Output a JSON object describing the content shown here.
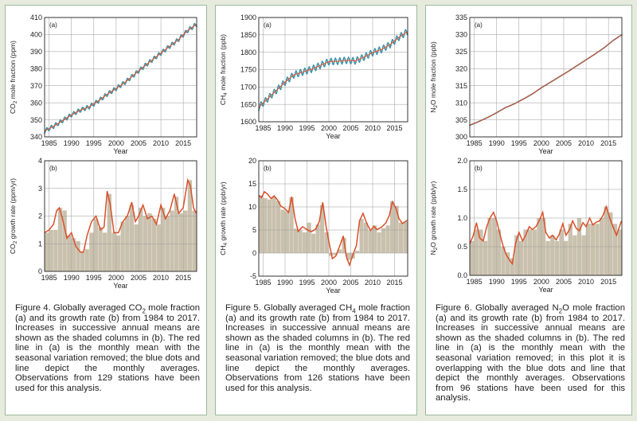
{
  "panels": [
    {
      "id": "co2",
      "caption_lines": [
        "Figure 4. Globally averaged CO",
        "2",
        " mole fraction (a) and its growth rate (b) from 1984 to 2017. Increases in successive annual means are shown as the shaded columns in (b). The red line in (a) is the monthly mean with the seasonal variation removed; the blue dots and line depict the monthly averages. Observations from 129 stations have been used for this analysis."
      ],
      "caption": "Figure 4. Globally averaged CO2 mole fraction (a) and its growth rate (b) from 1984 to 2017. Increases in successive annual means are shown as the shaded columns in (b). The red line in (a) is the monthly mean with the seasonal variation removed; the blue dots and line depict the monthly averages. Observations from 129 stations have been used for this analysis."
    },
    {
      "id": "ch4",
      "caption_lines": [
        "Figure 5. Globally averaged CH",
        "4",
        " mole fraction (a) and its growth rate (b) from 1984 to 2017. Increases in successive annual means are shown as the shaded columns in (b). The red line in (a) is the monthly mean with the seasonal variation removed; the blue dots and line depict the monthly averages. Observations from 126 stations have been used for this analysis."
      ],
      "caption": "Figure 5. Globally averaged CH4 mole fraction (a) and its growth rate (b) from 1984 to 2017. Increases in successive annual means are shown as the shaded columns in (b). The red line in (a) is the monthly mean with the seasonal variation removed; the blue dots and line depict the monthly averages. Observations from 126 stations have been used for this analysis."
    },
    {
      "id": "n2o",
      "caption_lines": [
        "Figure 6. Globally averaged N",
        "2",
        "O mole fraction (a) and its growth rate (b) from 1984 to 2017. Increases in successive annual means are shown as the shaded columns in (b). The red line in (a) is the monthly mean with the seasonal variation removed; in this plot it is overlapping with the blue dots and line that depict the monthly averages. Observations from 96 stations have been used for this analysis."
      ],
      "caption": "Figure 6. Globally averaged N2O mole fraction (a) and its growth rate (b) from 1984 to 2017. Increases in successive annual means are shown as the shaded columns in (b). The red line in (a) is the monthly mean with the seasonal variation removed; in this plot it is overlapping with the blue dots and line that depict the monthly averages. Observations from 96 stations have been used for this analysis."
    }
  ],
  "colors": {
    "red": "#d9502a",
    "blue": "#3a8fa8",
    "bar": "#c9c1ad",
    "grid": "#9a9a9a"
  },
  "chart_data": [
    {
      "type": "line",
      "panel": 0,
      "tag": "(a)",
      "title": "",
      "xlabel": "Year",
      "ylabel_main": "CO",
      "ylabel_sub": "2",
      "ylabel_rest": " mole fraction (ppm)",
      "xlim": [
        1984,
        2018
      ],
      "ylim": [
        340,
        410
      ],
      "xticks": [
        1985,
        1990,
        1995,
        2000,
        2005,
        2010,
        2015
      ],
      "yticks": [
        340,
        350,
        360,
        370,
        380,
        390,
        400,
        410
      ],
      "seasonal_amplitude": 1.2,
      "x": [
        1984,
        1986,
        1988,
        1990,
        1992,
        1994,
        1996,
        1998,
        2000,
        2002,
        2004,
        2006,
        2008,
        2010,
        2012,
        2014,
        2016,
        2017.9
      ],
      "y": [
        343.5,
        346.2,
        349.5,
        352.9,
        355.7,
        357.6,
        361.0,
        365.0,
        368.4,
        372.0,
        376.4,
        380.8,
        385.0,
        389.1,
        393.2,
        397.2,
        402.4,
        405.9
      ]
    },
    {
      "type": "bar",
      "panel": 0,
      "tag": "(b)",
      "title": "",
      "xlabel": "Year",
      "ylabel_main": "CO",
      "ylabel_sub": "2",
      "ylabel_rest": " growth rate (ppm/yr)",
      "xlim": [
        1984,
        2018
      ],
      "ylim": [
        0,
        4.0
      ],
      "xticks": [
        1985,
        1990,
        1995,
        2000,
        2005,
        2010,
        2015
      ],
      "yticks": [
        0.0,
        1.0,
        2.0,
        3.0,
        4.0
      ],
      "categories": [
        1984,
        1985,
        1986,
        1987,
        1988,
        1989,
        1990,
        1991,
        1992,
        1993,
        1994,
        1995,
        1996,
        1997,
        1998,
        1999,
        2000,
        2001,
        2002,
        2003,
        2004,
        2005,
        2006,
        2007,
        2008,
        2009,
        2010,
        2011,
        2012,
        2013,
        2014,
        2015,
        2016,
        2017
      ],
      "values": [
        1.4,
        1.5,
        1.5,
        2.3,
        2.2,
        1.3,
        1.2,
        1.1,
        0.7,
        0.8,
        1.4,
        1.9,
        1.6,
        1.4,
        2.8,
        1.4,
        1.3,
        1.8,
        2.0,
        2.4,
        1.7,
        2.3,
        2.0,
        2.1,
        1.9,
        1.7,
        2.3,
        2.0,
        2.2,
        2.7,
        2.1,
        2.2,
        3.3,
        2.2
      ],
      "line_x": [
        1984,
        1985,
        1986,
        1986.7,
        1987.3,
        1988,
        1989,
        1990,
        1991,
        1992,
        1992.7,
        1993.5,
        1994.5,
        1995.5,
        1996.5,
        1997.3,
        1998,
        1998.7,
        1999.5,
        2000.5,
        2001.5,
        2002.5,
        2003.5,
        2004.3,
        2005,
        2006,
        2007,
        2008,
        2009,
        2010,
        2011,
        2012,
        2013,
        2014,
        2015,
        2016,
        2016.6,
        2017.3,
        2017.9
      ],
      "line_y": [
        1.4,
        1.5,
        1.7,
        2.2,
        2.3,
        1.9,
        1.2,
        1.4,
        0.9,
        0.7,
        0.7,
        1.3,
        1.8,
        2.0,
        1.5,
        1.6,
        2.9,
        2.4,
        1.4,
        1.4,
        1.8,
        2.0,
        2.5,
        1.8,
        2.0,
        2.4,
        1.9,
        2.0,
        1.7,
        2.4,
        1.9,
        2.2,
        2.8,
        2.1,
        2.3,
        3.3,
        3.1,
        2.3,
        2.1
      ]
    },
    {
      "type": "line",
      "panel": 1,
      "tag": "(a)",
      "title": "",
      "xlabel": "Year",
      "ylabel_main": "CH",
      "ylabel_sub": "4",
      "ylabel_rest": " mole fraction (ppb)",
      "xlim": [
        1984,
        2018
      ],
      "ylim": [
        1600,
        1900
      ],
      "xticks": [
        1985,
        1990,
        1995,
        2000,
        2005,
        2010,
        2015
      ],
      "yticks": [
        1600,
        1650,
        1700,
        1750,
        1800,
        1850,
        1900
      ],
      "seasonal_amplitude": 9,
      "x": [
        1984,
        1986,
        1988,
        1990,
        1992,
        1994,
        1996,
        1998,
        2000,
        2002,
        2004,
        2006,
        2008,
        2010,
        2012,
        2014,
        2016,
        2017.9
      ],
      "y": [
        1642,
        1666,
        1690,
        1714,
        1735,
        1743,
        1751,
        1762,
        1773,
        1774,
        1777,
        1775,
        1786,
        1799,
        1808,
        1822,
        1843,
        1859
      ]
    },
    {
      "type": "bar",
      "panel": 1,
      "tag": "(b)",
      "title": "",
      "xlabel": "Year",
      "ylabel_main": "CH",
      "ylabel_sub": "4",
      "ylabel_rest": " growth rate (ppb/yr)",
      "xlim": [
        1984,
        2018
      ],
      "ylim": [
        -5,
        20
      ],
      "xticks": [
        1985,
        1990,
        1995,
        2000,
        2005,
        2010,
        2015
      ],
      "yticks": [
        -5,
        0,
        5,
        10,
        15,
        20
      ],
      "categories": [
        1984,
        1985,
        1986,
        1987,
        1988,
        1989,
        1990,
        1991,
        1992,
        1993,
        1994,
        1995,
        1996,
        1997,
        1998,
        1999,
        2000,
        2001,
        2002,
        2003,
        2004,
        2005,
        2006,
        2007,
        2008,
        2009,
        2010,
        2011,
        2012,
        2013,
        2014,
        2015,
        2016,
        2017
      ],
      "values": [
        12.5,
        11.9,
        11.6,
        12.2,
        11.3,
        9.4,
        9.0,
        12.1,
        5.3,
        4.9,
        4.5,
        6.6,
        4.2,
        6.2,
        10.4,
        4.5,
        -0.6,
        -0.4,
        0.8,
        3.3,
        -1.5,
        -1.2,
        0.5,
        7.4,
        6.6,
        4.9,
        6.0,
        4.5,
        5.4,
        6.0,
        11.2,
        10.2,
        6.6,
        6.8
      ],
      "line_x": [
        1984,
        1984.6,
        1985.3,
        1986,
        1986.8,
        1987.5,
        1988.3,
        1989,
        1990,
        1990.8,
        1991.5,
        1992.3,
        1993,
        1994,
        1995,
        1996,
        1997,
        1997.8,
        1998.6,
        1999.4,
        2000,
        2000.8,
        2001.6,
        2002.5,
        2003.3,
        2004,
        2004.7,
        2005.5,
        2006.3,
        2007,
        2007.8,
        2008.7,
        2009.5,
        2010.3,
        2011,
        2012,
        2013,
        2013.8,
        2014.5,
        2015.3,
        2016,
        2016.8,
        2017.9
      ],
      "line_y": [
        12.5,
        12.0,
        13.3,
        12.8,
        11.8,
        12.4,
        11.5,
        10.2,
        9.6,
        8.8,
        12.2,
        7.4,
        4.7,
        5.7,
        5.1,
        4.6,
        5.2,
        6.8,
        11.0,
        5.6,
        2.5,
        -1.2,
        -0.6,
        1.6,
        3.7,
        -0.8,
        -2.6,
        -0.3,
        1.6,
        7.0,
        8.6,
        6.3,
        4.9,
        5.8,
        5.1,
        5.6,
        6.5,
        8.1,
        11.1,
        9.8,
        7.5,
        6.4,
        7.1
      ]
    },
    {
      "type": "line",
      "panel": 2,
      "tag": "(a)",
      "title": "",
      "xlabel": "Year",
      "ylabel_main": "N",
      "ylabel_sub": "2",
      "ylabel_rest": "O mole fraction (ppb)",
      "xlim": [
        1984,
        2018
      ],
      "ylim": [
        300,
        335
      ],
      "xticks": [
        1985,
        1990,
        1995,
        2000,
        2005,
        2010,
        2015
      ],
      "yticks": [
        300,
        305,
        310,
        315,
        320,
        325,
        330,
        335
      ],
      "seasonal_amplitude": 0,
      "x": [
        1984,
        1986,
        1988,
        1990,
        1992,
        1994,
        1996,
        1998,
        2000,
        2002,
        2004,
        2006,
        2008,
        2010,
        2012,
        2014,
        2016,
        2017.9
      ],
      "y": [
        303.4,
        304.5,
        305.7,
        307.1,
        308.6,
        309.7,
        311.1,
        312.6,
        314.4,
        316.0,
        317.6,
        319.2,
        320.9,
        322.6,
        324.3,
        326.1,
        328.2,
        329.9
      ]
    },
    {
      "type": "bar",
      "panel": 2,
      "tag": "(b)",
      "title": "",
      "xlabel": "Year",
      "ylabel_main": "N",
      "ylabel_sub": "2",
      "ylabel_rest": "O growth rate (ppb/yr)",
      "xlim": [
        1984,
        2018
      ],
      "ylim": [
        0.0,
        2.0
      ],
      "xticks": [
        1985,
        1990,
        1995,
        2000,
        2005,
        2010,
        2015
      ],
      "yticks": [
        0.0,
        0.5,
        1.0,
        1.5,
        2.0
      ],
      "categories": [
        1984,
        1985,
        1986,
        1987,
        1988,
        1989,
        1990,
        1991,
        1992,
        1993,
        1994,
        1995,
        1996,
        1997,
        1998,
        1999,
        2000,
        2001,
        2002,
        2003,
        2004,
        2005,
        2006,
        2007,
        2008,
        2009,
        2010,
        2011,
        2012,
        2013,
        2014,
        2015,
        2016,
        2017
      ],
      "values": [
        0.6,
        0.8,
        0.8,
        0.6,
        1.0,
        1.0,
        0.8,
        0.5,
        0.4,
        0.3,
        0.7,
        0.6,
        0.8,
        0.8,
        0.8,
        1.0,
        1.0,
        0.6,
        0.7,
        0.6,
        0.8,
        0.6,
        0.9,
        0.7,
        1.0,
        0.7,
        0.9,
        0.9,
        0.9,
        1.0,
        1.2,
        1.1,
        0.9,
        0.8
      ],
      "line_x": [
        1984,
        1984.8,
        1985.5,
        1986.2,
        1987,
        1987.8,
        1988.5,
        1989.3,
        1990,
        1990.8,
        1991.5,
        1992.2,
        1993,
        1993.5,
        1994.2,
        1995,
        1995.8,
        1996.5,
        1997.3,
        1998,
        1998.8,
        1999.5,
        2000.3,
        2001,
        2001.8,
        2002.5,
        2003.3,
        2004,
        2004.8,
        2005.5,
        2006.3,
        2007,
        2007.8,
        2008.5,
        2009.3,
        2010,
        2010.8,
        2011.5,
        2012.3,
        2013,
        2013.8,
        2014.5,
        2015.3,
        2016,
        2016.8,
        2017.9
      ],
      "line_y": [
        0.55,
        0.7,
        0.92,
        0.65,
        0.6,
        0.85,
        1.0,
        1.1,
        0.95,
        0.7,
        0.5,
        0.35,
        0.25,
        0.2,
        0.55,
        0.75,
        0.6,
        0.7,
        0.85,
        0.8,
        0.85,
        0.95,
        1.1,
        0.75,
        0.65,
        0.7,
        0.62,
        0.72,
        0.9,
        0.7,
        0.8,
        0.95,
        0.82,
        0.78,
        0.92,
        0.85,
        1.0,
        0.88,
        0.93,
        0.95,
        1.05,
        1.2,
        1.0,
        0.85,
        0.7,
        0.95
      ]
    }
  ]
}
